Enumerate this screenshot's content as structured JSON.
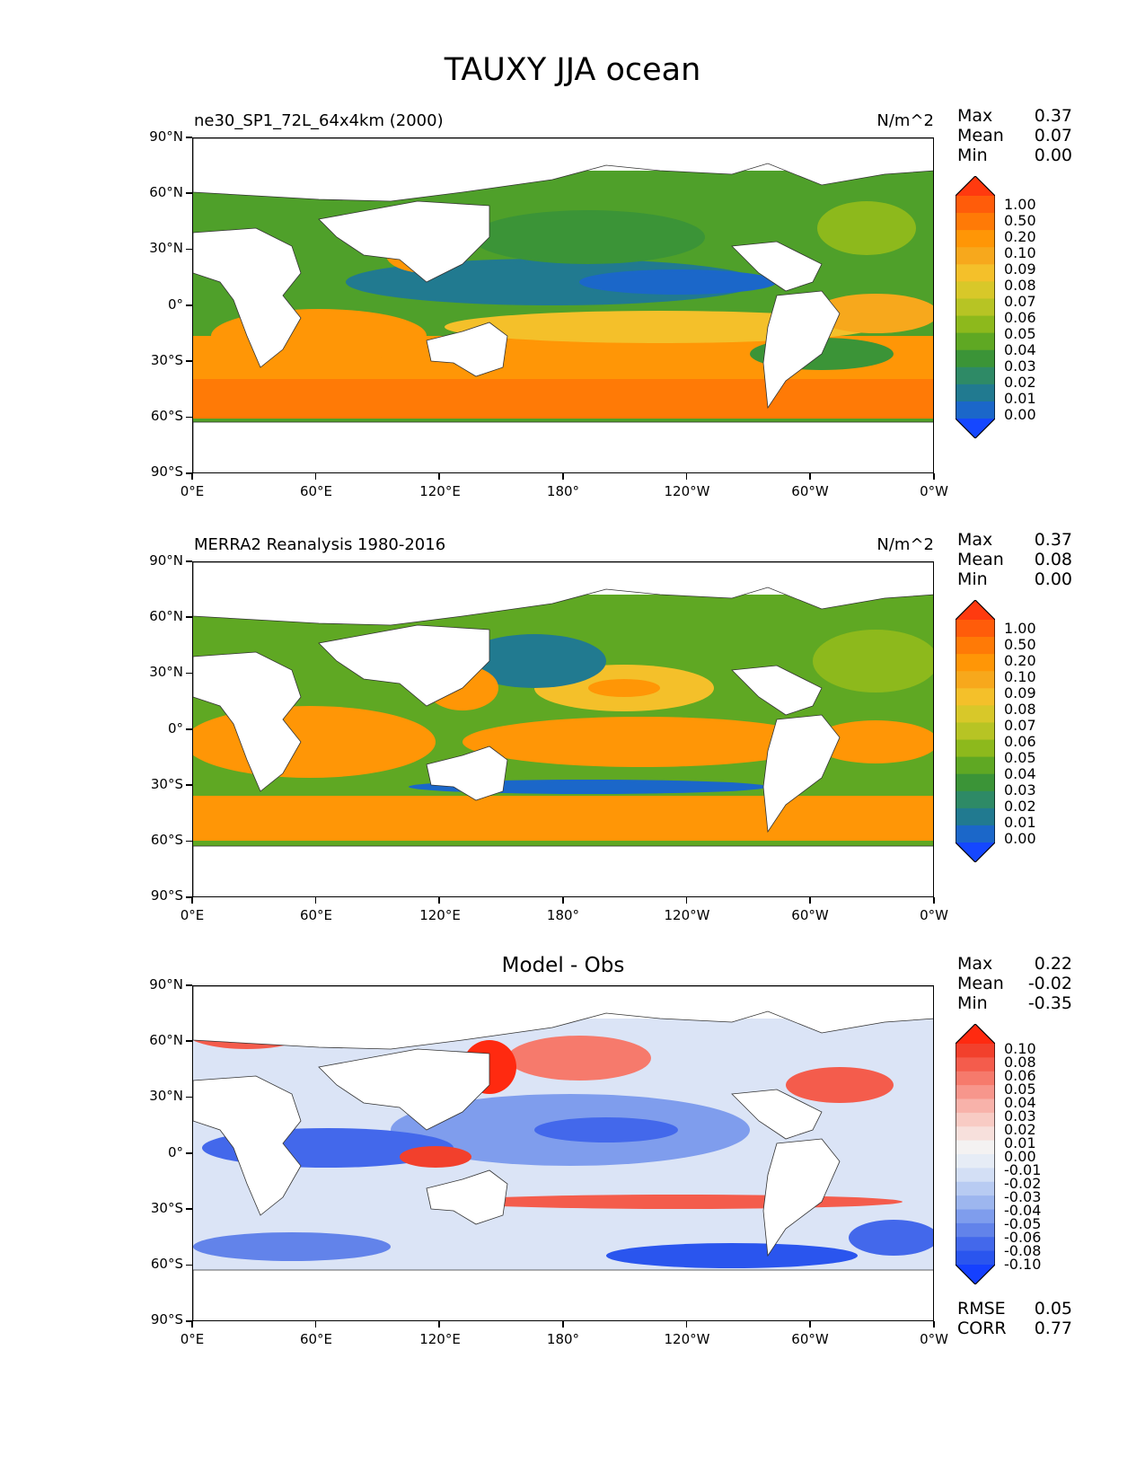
{
  "title": "TAUXY JJA ocean",
  "axes": {
    "y_ticks": [
      "90°N",
      "60°N",
      "30°N",
      "0°",
      "30°S",
      "60°S",
      "90°S"
    ],
    "x_ticks": [
      "0°E",
      "60°E",
      "120°E",
      "180°",
      "120°W",
      "60°W",
      "0°W"
    ]
  },
  "panels": [
    {
      "title_left": "ne30_SP1_72L_64x4km (2000)",
      "title_right": "N/m^2",
      "stats": [
        {
          "name": "Max",
          "value": "0.37"
        },
        {
          "name": "Mean",
          "value": "0.07"
        },
        {
          "name": "Min",
          "value": "0.00"
        }
      ],
      "colorbar": {
        "labels": [
          "1.00",
          "0.50",
          "0.20",
          "0.10",
          "0.09",
          "0.08",
          "0.07",
          "0.06",
          "0.05",
          "0.04",
          "0.03",
          "0.02",
          "0.01",
          "0.00"
        ],
        "colors": [
          "#ff3a0f",
          "#ff5c0a",
          "#ff7a06",
          "#ff9606",
          "#f7a81c",
          "#f4c02a",
          "#d8c829",
          "#b7c424",
          "#8db91c",
          "#5fa823",
          "#3b9437",
          "#2e8a66",
          "#217a90",
          "#1b67c9",
          "#1547ff"
        ]
      }
    },
    {
      "title_left": "MERRA2 Reanalysis 1980-2016",
      "title_right": "N/m^2",
      "stats": [
        {
          "name": "Max",
          "value": "0.37"
        },
        {
          "name": "Mean",
          "value": "0.08"
        },
        {
          "name": "Min",
          "value": "0.00"
        }
      ],
      "colorbar": {
        "labels": [
          "1.00",
          "0.50",
          "0.20",
          "0.10",
          "0.09",
          "0.08",
          "0.07",
          "0.06",
          "0.05",
          "0.04",
          "0.03",
          "0.02",
          "0.01",
          "0.00"
        ],
        "colors": [
          "#ff3a0f",
          "#ff5c0a",
          "#ff7a06",
          "#ff9606",
          "#f7a81c",
          "#f4c02a",
          "#d8c829",
          "#b7c424",
          "#8db91c",
          "#5fa823",
          "#3b9437",
          "#2e8a66",
          "#217a90",
          "#1b67c9",
          "#1547ff"
        ]
      }
    },
    {
      "title_center": "Model - Obs",
      "stats": [
        {
          "name": "Max",
          "value": "0.22"
        },
        {
          "name": "Mean",
          "value": "-0.02"
        },
        {
          "name": "Min",
          "value": "-0.35"
        }
      ],
      "extra_stats": [
        {
          "name": "RMSE",
          "value": "0.05"
        },
        {
          "name": "CORR",
          "value": "0.77"
        }
      ],
      "colorbar": {
        "labels": [
          "0.10",
          "0.08",
          "0.06",
          "0.05",
          "0.04",
          "0.03",
          "0.02",
          "0.01",
          "0.00",
          "-0.01",
          "-0.02",
          "-0.03",
          "-0.04",
          "-0.05",
          "-0.06",
          "-0.08",
          "-0.10"
        ],
        "colors": [
          "#ff2a10",
          "#f2402c",
          "#f45c4c",
          "#f67a6c",
          "#f7968c",
          "#f8b2aa",
          "#f8cbc4",
          "#f7e0dc",
          "#f4f2f2",
          "#e6ecf6",
          "#d3dff5",
          "#b8cbf2",
          "#9db6ef",
          "#7f9ded",
          "#6283ea",
          "#4368eb",
          "#2a55ee",
          "#1540ff"
        ]
      }
    }
  ]
}
